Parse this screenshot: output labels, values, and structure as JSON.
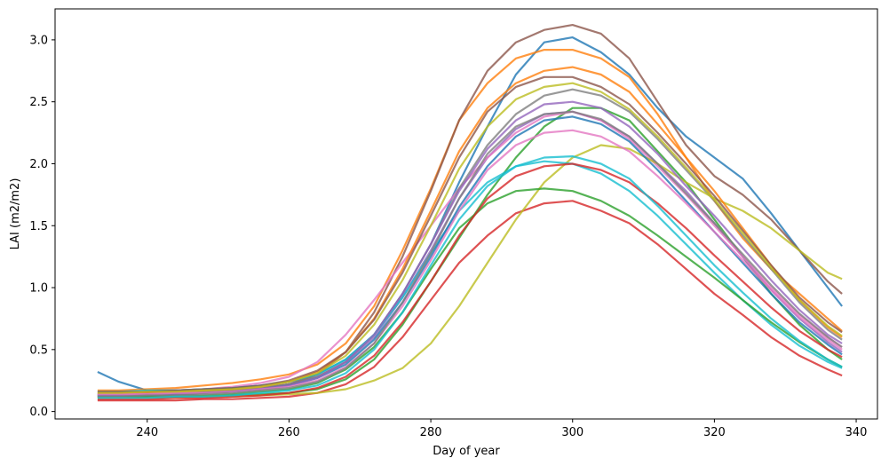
{
  "chart_data": {
    "type": "line",
    "title": "",
    "xlabel": "Day of year",
    "ylabel": "LAI (m2/m2)",
    "xlim": [
      227,
      343
    ],
    "ylim": [
      -0.06,
      3.25
    ],
    "x_ticks": [
      240,
      260,
      280,
      300,
      320,
      340
    ],
    "y_ticks": [
      0.0,
      0.5,
      1.0,
      1.5,
      2.0,
      2.5,
      3.0
    ],
    "x_tick_labels": [
      "240",
      "260",
      "280",
      "300",
      "320",
      "340"
    ],
    "y_tick_labels": [
      "0.0",
      "0.5",
      "1.0",
      "1.5",
      "2.0",
      "2.5",
      "3.0"
    ],
    "grid": false,
    "legend": "none",
    "x": [
      233,
      236,
      240,
      244,
      248,
      252,
      256,
      260,
      264,
      268,
      272,
      276,
      280,
      284,
      288,
      292,
      296,
      300,
      304,
      308,
      312,
      316,
      320,
      324,
      328,
      332,
      336,
      338
    ],
    "colors": [
      "#1f77b4",
      "#ff7f0e",
      "#2ca02c",
      "#d62728",
      "#9467bd",
      "#8c564b",
      "#e377c2",
      "#7f7f7f",
      "#bcbd22",
      "#17becf"
    ],
    "series": [
      {
        "values": [
          0.32,
          0.24,
          0.17,
          0.17,
          0.18,
          0.19,
          0.21,
          0.24,
          0.3,
          0.42,
          0.62,
          0.95,
          1.35,
          1.85,
          2.3,
          2.72,
          2.98,
          3.02,
          2.9,
          2.72,
          2.45,
          2.22,
          2.05,
          1.88,
          1.6,
          1.3,
          1.0,
          0.85
        ]
      },
      {
        "values": [
          0.17,
          0.17,
          0.18,
          0.19,
          0.21,
          0.23,
          0.26,
          0.3,
          0.38,
          0.55,
          0.85,
          1.3,
          1.8,
          2.35,
          2.65,
          2.85,
          2.92,
          2.92,
          2.85,
          2.7,
          2.4,
          2.05,
          1.7,
          1.4,
          1.15,
          0.95,
          0.75,
          0.65
        ]
      },
      {
        "values": [
          0.12,
          0.12,
          0.12,
          0.12,
          0.12,
          0.13,
          0.14,
          0.15,
          0.18,
          0.26,
          0.42,
          0.7,
          1.05,
          1.4,
          1.75,
          2.05,
          2.3,
          2.45,
          2.45,
          2.35,
          2.1,
          1.85,
          1.55,
          1.25,
          0.95,
          0.7,
          0.5,
          0.42
        ]
      },
      {
        "values": [
          0.09,
          0.09,
          0.09,
          0.09,
          0.1,
          0.1,
          0.11,
          0.12,
          0.15,
          0.22,
          0.36,
          0.6,
          0.9,
          1.2,
          1.42,
          1.6,
          1.68,
          1.7,
          1.62,
          1.52,
          1.35,
          1.15,
          0.95,
          0.78,
          0.6,
          0.45,
          0.34,
          0.29
        ]
      },
      {
        "values": [
          0.14,
          0.14,
          0.15,
          0.15,
          0.16,
          0.17,
          0.19,
          0.22,
          0.28,
          0.4,
          0.6,
          0.92,
          1.3,
          1.72,
          2.05,
          2.28,
          2.4,
          2.42,
          2.35,
          2.22,
          2.0,
          1.78,
          1.52,
          1.25,
          0.98,
          0.75,
          0.56,
          0.48
        ]
      },
      {
        "values": [
          0.13,
          0.13,
          0.14,
          0.14,
          0.15,
          0.16,
          0.18,
          0.22,
          0.3,
          0.48,
          0.8,
          1.25,
          1.78,
          2.35,
          2.75,
          2.98,
          3.08,
          3.12,
          3.05,
          2.85,
          2.5,
          2.15,
          1.9,
          1.75,
          1.55,
          1.3,
          1.05,
          0.95
        ]
      },
      {
        "values": [
          0.15,
          0.15,
          0.16,
          0.17,
          0.18,
          0.2,
          0.23,
          0.28,
          0.4,
          0.62,
          0.9,
          1.2,
          1.5,
          1.8,
          2.05,
          2.25,
          2.38,
          2.42,
          2.35,
          2.2,
          1.98,
          1.75,
          1.5,
          1.25,
          1.0,
          0.78,
          0.6,
          0.52
        ]
      },
      {
        "values": [
          0.14,
          0.14,
          0.14,
          0.15,
          0.16,
          0.17,
          0.19,
          0.22,
          0.28,
          0.4,
          0.62,
          0.95,
          1.35,
          1.8,
          2.15,
          2.4,
          2.55,
          2.6,
          2.55,
          2.42,
          2.2,
          1.95,
          1.7,
          1.42,
          1.15,
          0.88,
          0.66,
          0.58
        ]
      },
      {
        "values": [
          0.11,
          0.11,
          0.11,
          0.11,
          0.12,
          0.12,
          0.13,
          0.14,
          0.15,
          0.18,
          0.25,
          0.35,
          0.55,
          0.85,
          1.2,
          1.55,
          1.85,
          2.05,
          2.15,
          2.12,
          2.0,
          1.85,
          1.72,
          1.62,
          1.48,
          1.3,
          1.12,
          1.07
        ]
      },
      {
        "values": [
          0.16,
          0.16,
          0.17,
          0.17,
          0.18,
          0.19,
          0.21,
          0.24,
          0.3,
          0.42,
          0.62,
          0.92,
          1.28,
          1.62,
          1.85,
          1.98,
          2.02,
          2.0,
          1.92,
          1.78,
          1.58,
          1.35,
          1.12,
          0.9,
          0.7,
          0.53,
          0.4,
          0.35
        ]
      },
      {
        "values": [
          0.13,
          0.13,
          0.13,
          0.14,
          0.15,
          0.16,
          0.18,
          0.21,
          0.27,
          0.38,
          0.58,
          0.88,
          1.25,
          1.65,
          1.98,
          2.22,
          2.35,
          2.38,
          2.32,
          2.18,
          1.95,
          1.7,
          1.45,
          1.2,
          0.95,
          0.72,
          0.54,
          0.46
        ]
      },
      {
        "values": [
          0.15,
          0.15,
          0.15,
          0.16,
          0.17,
          0.18,
          0.2,
          0.24,
          0.32,
          0.48,
          0.75,
          1.15,
          1.62,
          2.1,
          2.45,
          2.65,
          2.75,
          2.78,
          2.72,
          2.58,
          2.32,
          2.05,
          1.78,
          1.48,
          1.18,
          0.9,
          0.68,
          0.6
        ]
      },
      {
        "values": [
          0.12,
          0.12,
          0.12,
          0.13,
          0.13,
          0.14,
          0.16,
          0.18,
          0.23,
          0.34,
          0.52,
          0.8,
          1.15,
          1.48,
          1.68,
          1.78,
          1.8,
          1.78,
          1.7,
          1.58,
          1.42,
          1.25,
          1.08,
          0.9,
          0.72,
          0.56,
          0.42,
          0.36
        ]
      },
      {
        "values": [
          0.1,
          0.1,
          0.1,
          0.11,
          0.11,
          0.12,
          0.13,
          0.15,
          0.19,
          0.28,
          0.45,
          0.72,
          1.05,
          1.42,
          1.72,
          1.9,
          1.98,
          2.0,
          1.95,
          1.85,
          1.68,
          1.48,
          1.26,
          1.05,
          0.84,
          0.65,
          0.5,
          0.44
        ]
      },
      {
        "values": [
          0.13,
          0.13,
          0.14,
          0.14,
          0.15,
          0.16,
          0.18,
          0.21,
          0.27,
          0.4,
          0.62,
          0.95,
          1.35,
          1.78,
          2.12,
          2.35,
          2.48,
          2.5,
          2.45,
          2.3,
          2.08,
          1.82,
          1.58,
          1.32,
          1.06,
          0.82,
          0.62,
          0.55
        ]
      },
      {
        "values": [
          0.16,
          0.16,
          0.16,
          0.17,
          0.18,
          0.19,
          0.21,
          0.25,
          0.33,
          0.48,
          0.74,
          1.12,
          1.58,
          2.05,
          2.42,
          2.62,
          2.7,
          2.7,
          2.62,
          2.48,
          2.25,
          2.0,
          1.74,
          1.46,
          1.18,
          0.92,
          0.72,
          0.64
        ]
      },
      {
        "values": [
          0.14,
          0.14,
          0.14,
          0.15,
          0.15,
          0.16,
          0.18,
          0.2,
          0.25,
          0.36,
          0.55,
          0.85,
          1.22,
          1.62,
          1.95,
          2.15,
          2.25,
          2.27,
          2.22,
          2.1,
          1.9,
          1.68,
          1.45,
          1.22,
          0.98,
          0.76,
          0.58,
          0.5
        ]
      },
      {
        "values": [
          0.12,
          0.12,
          0.13,
          0.13,
          0.14,
          0.15,
          0.17,
          0.19,
          0.24,
          0.35,
          0.55,
          0.88,
          1.28,
          1.72,
          2.08,
          2.3,
          2.4,
          2.42,
          2.36,
          2.22,
          2.0,
          1.76,
          1.52,
          1.27,
          1.02,
          0.79,
          0.6,
          0.52
        ]
      },
      {
        "values": [
          0.15,
          0.15,
          0.16,
          0.16,
          0.17,
          0.18,
          0.2,
          0.24,
          0.31,
          0.45,
          0.7,
          1.06,
          1.5,
          1.96,
          2.3,
          2.52,
          2.62,
          2.65,
          2.58,
          2.44,
          2.22,
          1.97,
          1.71,
          1.44,
          1.16,
          0.9,
          0.69,
          0.61
        ]
      },
      {
        "values": [
          0.11,
          0.11,
          0.11,
          0.12,
          0.12,
          0.13,
          0.15,
          0.17,
          0.21,
          0.31,
          0.5,
          0.8,
          1.18,
          1.55,
          1.82,
          1.98,
          2.05,
          2.06,
          2.0,
          1.88,
          1.66,
          1.42,
          1.18,
          0.96,
          0.75,
          0.57,
          0.42,
          0.36
        ]
      }
    ]
  }
}
